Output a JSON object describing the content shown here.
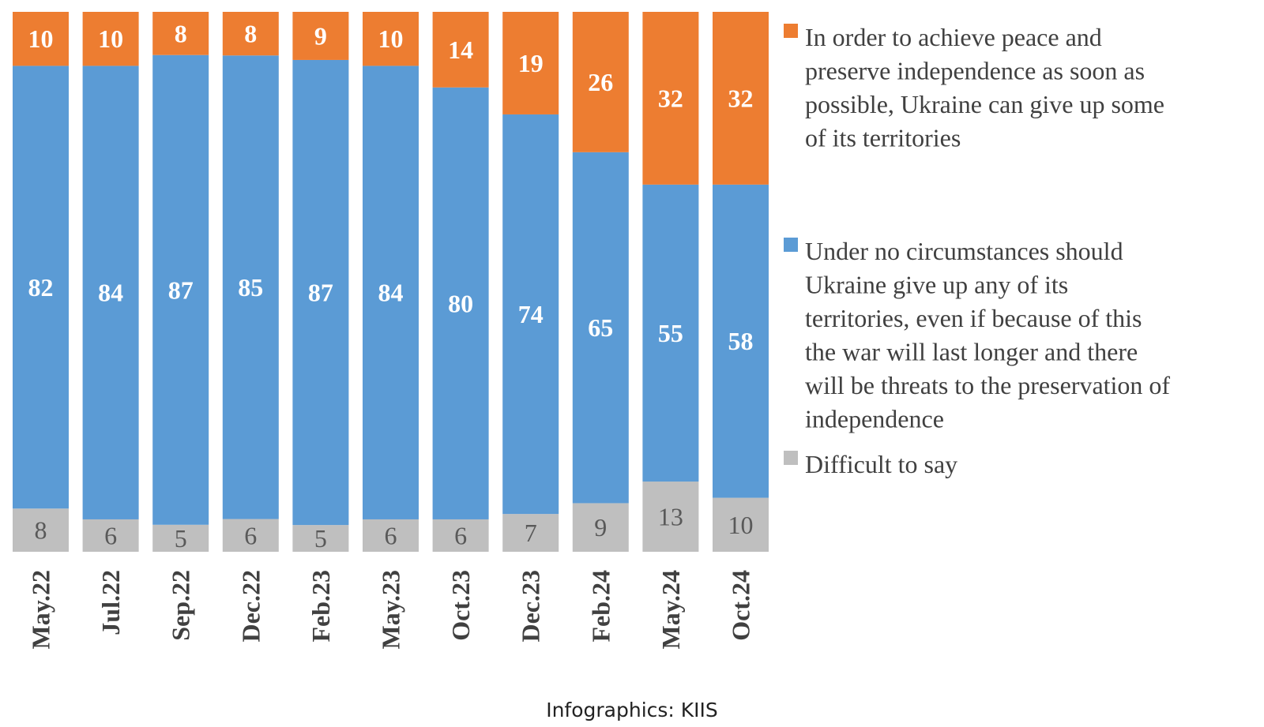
{
  "chart_data": {
    "type": "bar",
    "stacked": true,
    "percent": true,
    "orientation": "vertical",
    "categories": [
      "May.22",
      "Jul.22",
      "Sep.22",
      "Dec.22",
      "Feb.23",
      "May.23",
      "Oct.23",
      "Dec.23",
      "Feb.24",
      "May.24",
      "Oct.24"
    ],
    "series": [
      {
        "key": "difficult",
        "name": "Difficult to say",
        "color": "#BFBFBF",
        "label_color": "#595959",
        "values": [
          8,
          6,
          5,
          6,
          5,
          6,
          6,
          7,
          9,
          13,
          10
        ]
      },
      {
        "key": "no_concessions",
        "name": "Under no circumstances should Ukraine give up any of its territories, even if because of this the war will last longer and there will be threats to the preservation of independence",
        "color": "#5B9BD5",
        "label_color": "#FFFFFF",
        "values": [
          82,
          84,
          87,
          85,
          87,
          84,
          80,
          74,
          65,
          55,
          58
        ]
      },
      {
        "key": "give_up",
        "name": "In order to achieve peace and preserve independence as soon as possible, Ukraine can give up some of its territories",
        "color": "#ED7D31",
        "label_color": "#FFFFFF",
        "values": [
          10,
          10,
          8,
          8,
          9,
          10,
          14,
          19,
          26,
          32,
          32
        ]
      }
    ],
    "legend": {
      "placement": "right",
      "order": [
        "give_up",
        "no_concessions",
        "difficult"
      ],
      "lines": {
        "give_up": [
          "In order to achieve peace and",
          "preserve independence as soon as",
          "possible, Ukraine can give up some",
          "of its territories"
        ],
        "no_concessions": [
          "Under no circumstances should",
          "Ukraine give up any of its",
          "territories, even if because of this",
          "the war will last longer and there",
          "will be threats to the preservation of",
          "independence"
        ],
        "difficult": [
          "Difficult to say"
        ]
      }
    },
    "tick_label_rotation": -90,
    "ylim": [
      0,
      100
    ],
    "grid": false
  },
  "caption": "Infographics: KIIS"
}
